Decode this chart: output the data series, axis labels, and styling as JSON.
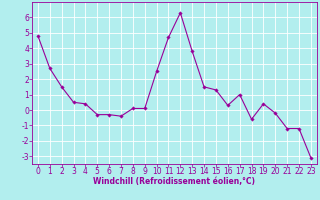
{
  "x": [
    0,
    1,
    2,
    3,
    4,
    5,
    6,
    7,
    8,
    9,
    10,
    11,
    12,
    13,
    14,
    15,
    16,
    17,
    18,
    19,
    20,
    21,
    22,
    23
  ],
  "y": [
    4.8,
    2.7,
    1.5,
    0.5,
    0.4,
    -0.3,
    -0.3,
    -0.4,
    0.1,
    0.1,
    2.5,
    4.7,
    6.3,
    3.8,
    1.5,
    1.3,
    0.3,
    1.0,
    -0.6,
    0.4,
    -0.2,
    -1.2,
    -1.2,
    -3.1
  ],
  "line_color": "#990099",
  "marker": "D",
  "marker_size": 1.8,
  "linewidth": 0.8,
  "xlabel": "Windchill (Refroidissement éolien,°C)",
  "xlim": [
    -0.5,
    23.5
  ],
  "ylim": [
    -3.5,
    7.0
  ],
  "yticks": [
    -3,
    -2,
    -1,
    0,
    1,
    2,
    3,
    4,
    5,
    6
  ],
  "xticks": [
    0,
    1,
    2,
    3,
    4,
    5,
    6,
    7,
    8,
    9,
    10,
    11,
    12,
    13,
    14,
    15,
    16,
    17,
    18,
    19,
    20,
    21,
    22,
    23
  ],
  "bg_color": "#b2eeee",
  "grid_color": "#ffffff",
  "spine_color": "#990099",
  "tick_color": "#990099",
  "label_color": "#990099",
  "xlabel_fontsize": 5.5,
  "tick_fontsize": 5.5,
  "fig_width": 3.2,
  "fig_height": 2.0,
  "dpi": 100
}
